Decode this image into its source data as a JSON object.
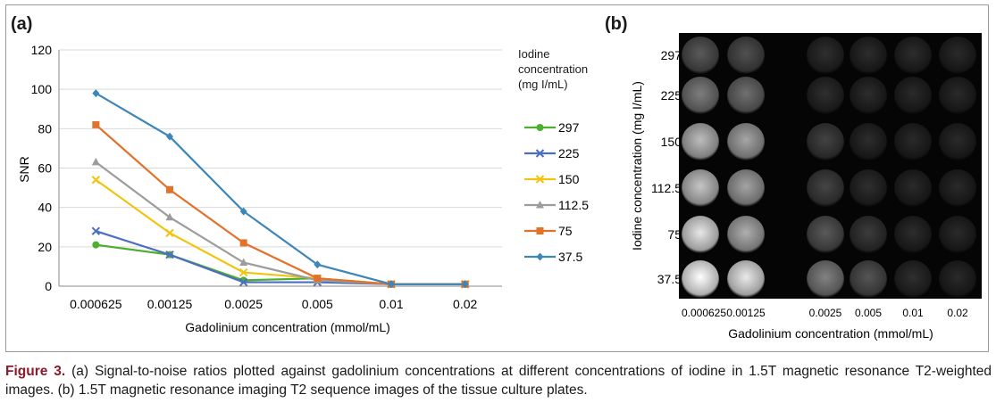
{
  "panel_a_label": "(a)",
  "panel_b_label": "(b)",
  "caption": {
    "figure_label": "Figure 3.",
    "text": " (a) Signal-to-noise ratios plotted against gadolinium concentrations at different concentrations of iodine in 1.5T magnetic resonance T2-weighted images. (b) 1.5T magnetic resonance imaging T2 sequence images of the tissue culture plates."
  },
  "chart_data": [
    {
      "type": "line",
      "xlabel": "Gadolinium concentration (mmol/mL)",
      "ylabel": "SNR",
      "categories": [
        "0.000625",
        "0.00125",
        "0.0025",
        "0.005",
        "0.01",
        "0.02"
      ],
      "ylim": [
        0,
        120
      ],
      "yticks": [
        "0",
        "20",
        "40",
        "60",
        "80",
        "100",
        "120"
      ],
      "grid": "horizontal",
      "legend_title": [
        "Iodine",
        "concentration",
        "(mg I/mL)"
      ],
      "legend_position": "right",
      "series": [
        {
          "name": "297",
          "color": "#4caf2f",
          "marker": "circle",
          "values": [
            21,
            16,
            3,
            4,
            1,
            1
          ]
        },
        {
          "name": "225",
          "color": "#4a6fc0",
          "marker": "x",
          "values": [
            28,
            16,
            2,
            2,
            1,
            1
          ]
        },
        {
          "name": "150",
          "color": "#f2c40f",
          "marker": "x",
          "values": [
            54,
            27,
            7,
            4,
            1,
            1
          ]
        },
        {
          "name": "112.5",
          "color": "#9c9c9c",
          "marker": "triangle",
          "values": [
            63,
            35,
            12,
            3,
            1,
            1
          ]
        },
        {
          "name": "75",
          "color": "#e2712a",
          "marker": "square",
          "values": [
            82,
            49,
            22,
            4,
            1,
            1
          ]
        },
        {
          "name": "37.5",
          "color": "#3d86b8",
          "marker": "diamond",
          "values": [
            98,
            76,
            38,
            11,
            1,
            1
          ]
        }
      ]
    },
    {
      "type": "heatmap",
      "xlabel": "Gadolinium concentration (mmol/mL)",
      "ylabel": "Iodine concentration (mg I/mL)",
      "columns": [
        "0.000625",
        "0.00125",
        "0.0025",
        "0.005",
        "0.01",
        "0.02"
      ],
      "rows": [
        "297",
        "225",
        "150",
        "112.5",
        "75",
        "37.5"
      ],
      "brightness": [
        [
          0.22,
          0.18,
          0.03,
          0.02,
          0.02,
          0.01
        ],
        [
          0.38,
          0.32,
          0.03,
          0.02,
          0.01,
          0.01
        ],
        [
          0.66,
          0.56,
          0.12,
          0.02,
          0.01,
          0.01
        ],
        [
          0.7,
          0.55,
          0.13,
          0.03,
          0.01,
          0.01
        ],
        [
          0.85,
          0.6,
          0.22,
          0.09,
          0.02,
          0.01
        ],
        [
          0.96,
          0.86,
          0.4,
          0.2,
          0.03,
          0.01
        ]
      ]
    }
  ]
}
